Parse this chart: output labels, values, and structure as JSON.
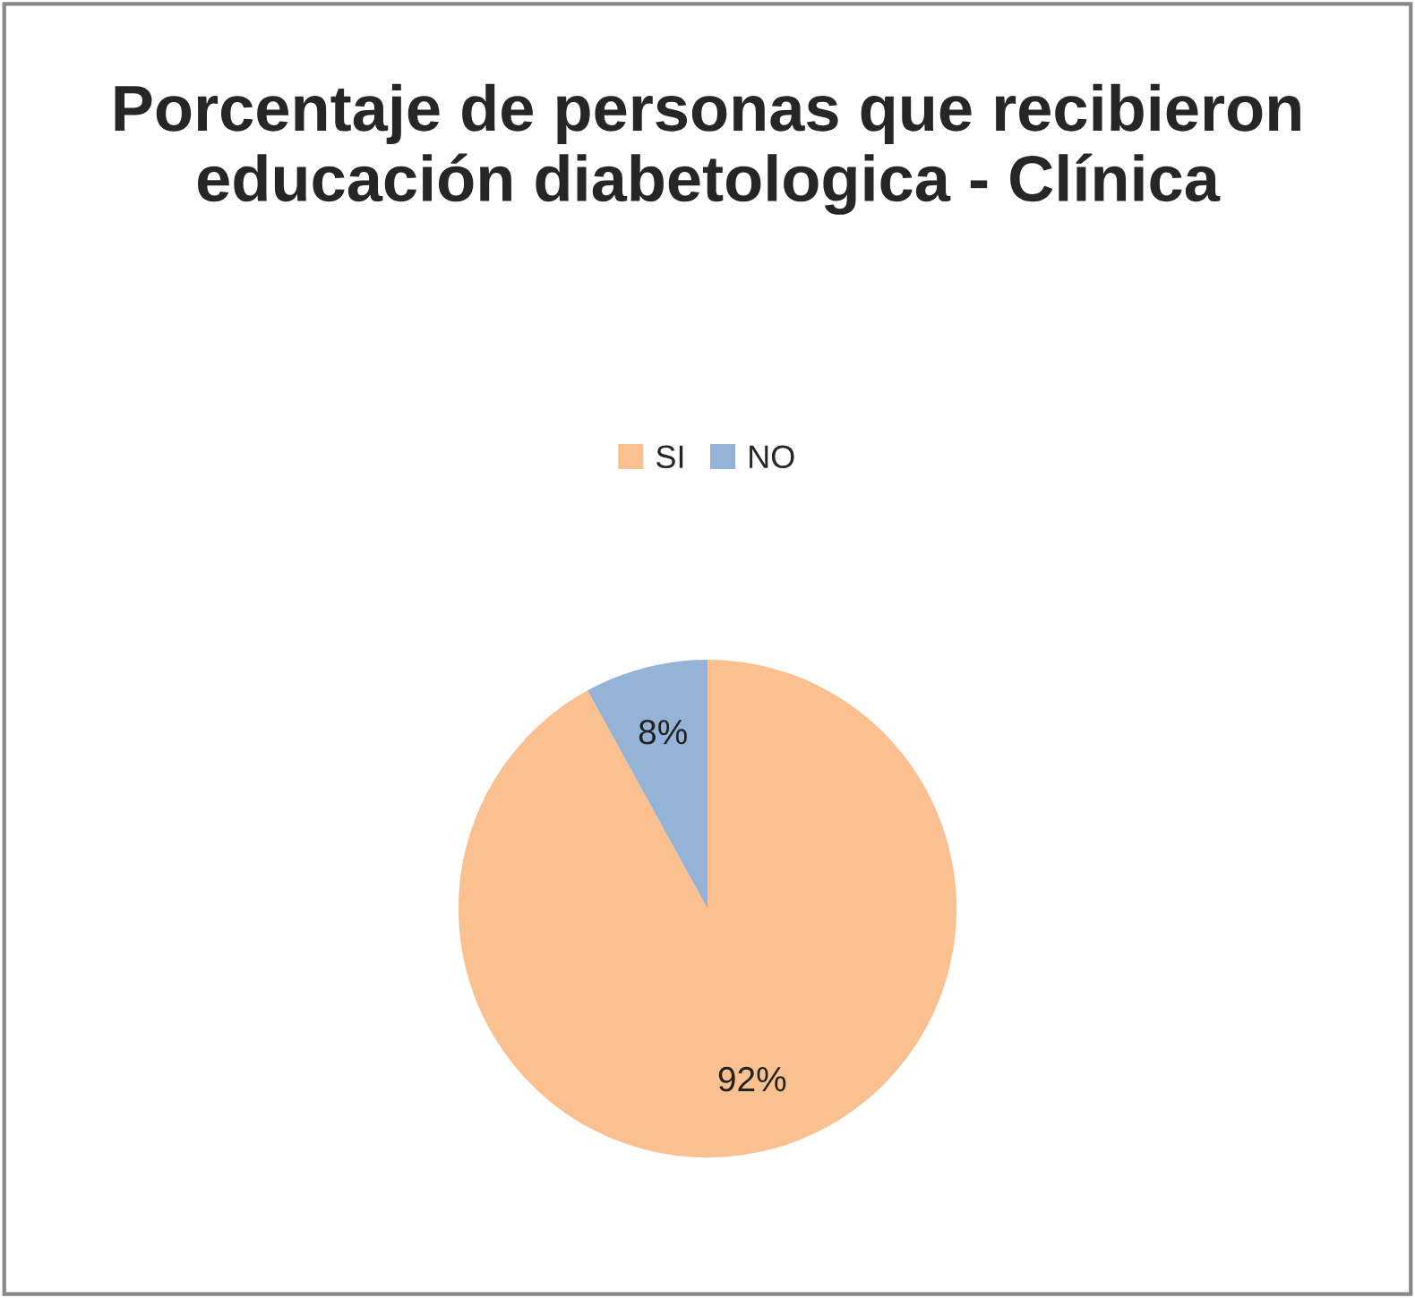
{
  "chart_data": {
    "type": "pie",
    "title": "Porcentaje de personas que recibieron educación diabetologica - Clínica",
    "categories": [
      "SI",
      "NO"
    ],
    "values": [
      92,
      8
    ],
    "colors": [
      "#fac090",
      "#95b3d7"
    ],
    "value_labels": [
      "92%",
      "8%"
    ],
    "legend": "top"
  }
}
